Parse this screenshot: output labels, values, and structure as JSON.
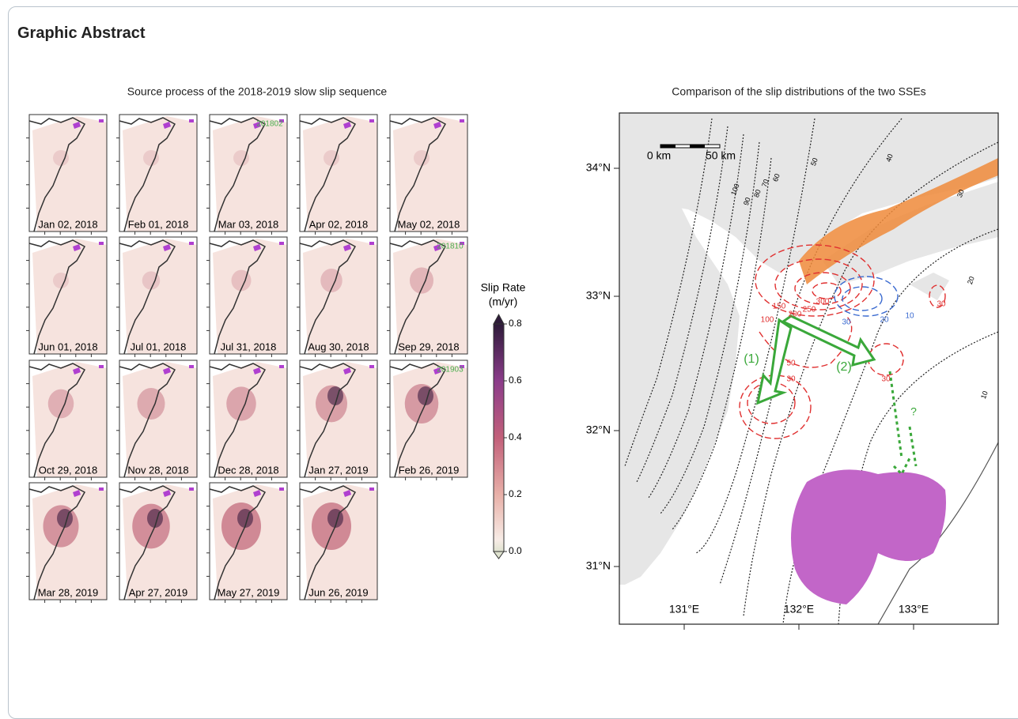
{
  "header": {
    "title": "Graphic Abstract"
  },
  "left_figure": {
    "title": "Source process of the 2018-2019 slow slip sequence",
    "panels": [
      {
        "date": "Jan 02, 2018"
      },
      {
        "date": "Feb 01, 2018"
      },
      {
        "date": "Mar 03, 2018",
        "tag": "201802"
      },
      {
        "date": "Apr 02, 2018"
      },
      {
        "date": "May 02, 2018"
      },
      {
        "date": "Jun 01, 2018"
      },
      {
        "date": "Jul 01, 2018"
      },
      {
        "date": "Jul 31, 2018"
      },
      {
        "date": "Aug 30, 2018"
      },
      {
        "date": "Sep 29, 2018",
        "tag": "201810"
      },
      {
        "date": "Oct 29, 2018"
      },
      {
        "date": "Nov 28, 2018"
      },
      {
        "date": "Dec 28, 2018"
      },
      {
        "date": "Jan 27, 2019"
      },
      {
        "date": "Feb 26, 2019",
        "tag": "201903"
      },
      {
        "date": "Mar 28, 2019"
      },
      {
        "date": "Apr 27, 2019"
      },
      {
        "date": "May 27, 2019"
      },
      {
        "date": "Jun 26, 2019"
      }
    ],
    "colorbar": {
      "label": "Slip Rate",
      "unit": "(m/yr)",
      "ticks": [
        "0.8",
        "0.6",
        "0.4",
        "0.2",
        "0.0"
      ]
    }
  },
  "right_figure": {
    "title": "Comparison of the slip distributions of the two SSEs",
    "scale_bar": [
      "0 km",
      "50 km"
    ],
    "lat_labels": [
      "34°N",
      "33°N",
      "32°N",
      "31°N"
    ],
    "lon_labels": [
      "131°E",
      "132°E",
      "133°E"
    ],
    "depth_contour_labels": [
      "100",
      "90",
      "80",
      "70",
      "60",
      "50",
      "40",
      "30",
      "20",
      "10"
    ],
    "slip_contour_labels": [
      "150",
      "200",
      "250",
      "300",
      "100",
      "50",
      "30",
      "30",
      "30",
      "10",
      "20",
      "30"
    ],
    "arrow_labels": [
      "(1)",
      "(2)",
      "?"
    ]
  }
}
